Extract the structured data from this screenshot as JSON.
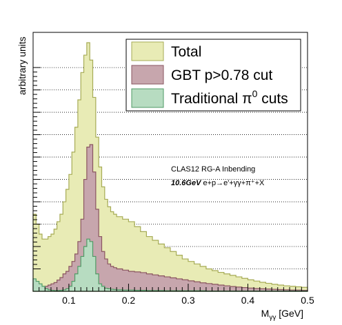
{
  "chart_data": {
    "type": "histogram",
    "xlabel": "M_γγ [GeV]",
    "xlabel_main": "M",
    "xlabel_sub": "γγ",
    "xlabel_unit": " [GeV]",
    "ylabel": "arbitrary units",
    "xlim": [
      0.04,
      0.5
    ],
    "ylim": [
      0,
      1.0
    ],
    "y_tick_labels_shown": false,
    "grid": "horizontal dotted",
    "legend_position": "top-right",
    "x_ticks": [
      {
        "value": 0.1,
        "label": "0.1"
      },
      {
        "value": 0.2,
        "label": "0.2"
      },
      {
        "value": 0.3,
        "label": "0.3"
      },
      {
        "value": 0.4,
        "label": "0.4"
      },
      {
        "value": 0.5,
        "label": "0.5"
      }
    ],
    "y_gridlines": [
      0.1,
      0.2,
      0.3,
      0.4,
      0.5,
      0.6,
      0.7,
      0.8,
      0.9,
      1.0
    ],
    "annotation": {
      "line1": "CLAS12 RG-A Inbending",
      "line2_bold": "10.6GeV",
      "line2_rest": " e+p→e'+γγ+π⁺+X"
    },
    "series": [
      {
        "name": "Total",
        "fill": "#e8ebb5",
        "stroke": "#a6ab55",
        "legend_label": "Total",
        "x": [
          0.04,
          0.045,
          0.05,
          0.055,
          0.06,
          0.065,
          0.07,
          0.075,
          0.08,
          0.085,
          0.09,
          0.095,
          0.1,
          0.105,
          0.11,
          0.115,
          0.12,
          0.125,
          0.13,
          0.135,
          0.14,
          0.145,
          0.15,
          0.155,
          0.16,
          0.165,
          0.17,
          0.175,
          0.18,
          0.19,
          0.2,
          0.21,
          0.22,
          0.23,
          0.24,
          0.25,
          0.26,
          0.27,
          0.28,
          0.29,
          0.3,
          0.31,
          0.32,
          0.33,
          0.34,
          0.35,
          0.36,
          0.37,
          0.38,
          0.39,
          0.4,
          0.41,
          0.42,
          0.43,
          0.44,
          0.45,
          0.46,
          0.47,
          0.48,
          0.49,
          0.5
        ],
        "y": [
          0.31,
          0.27,
          0.23,
          0.21,
          0.21,
          0.22,
          0.23,
          0.25,
          0.28,
          0.31,
          0.36,
          0.41,
          0.47,
          0.56,
          0.66,
          0.77,
          0.88,
          0.95,
          1.0,
          0.93,
          0.78,
          0.62,
          0.5,
          0.42,
          0.37,
          0.34,
          0.32,
          0.31,
          0.3,
          0.29,
          0.28,
          0.26,
          0.24,
          0.22,
          0.205,
          0.19,
          0.175,
          0.16,
          0.145,
          0.13,
          0.12,
          0.11,
          0.1,
          0.09,
          0.083,
          0.076,
          0.07,
          0.064,
          0.058,
          0.052,
          0.046,
          0.041,
          0.036,
          0.032,
          0.028,
          0.025,
          0.022,
          0.02,
          0.018,
          0.016,
          0.015
        ]
      },
      {
        "name": "GBT p>0.78 cut",
        "fill": "#c7a6ad",
        "stroke": "#8a5560",
        "legend_label": "GBT p>0.78 cut",
        "x": [
          0.04,
          0.045,
          0.05,
          0.055,
          0.06,
          0.065,
          0.07,
          0.075,
          0.08,
          0.085,
          0.09,
          0.095,
          0.1,
          0.105,
          0.11,
          0.115,
          0.12,
          0.125,
          0.13,
          0.135,
          0.14,
          0.145,
          0.15,
          0.155,
          0.16,
          0.165,
          0.17,
          0.175,
          0.18,
          0.19,
          0.2,
          0.21,
          0.22,
          0.23,
          0.24,
          0.25,
          0.26,
          0.27,
          0.28,
          0.29,
          0.3,
          0.31,
          0.32,
          0.33,
          0.34,
          0.35,
          0.36,
          0.37,
          0.38,
          0.39,
          0.4,
          0.41,
          0.42,
          0.43,
          0.44,
          0.45,
          0.46,
          0.47,
          0.48,
          0.49,
          0.5
        ],
        "y": [
          0.03,
          0.022,
          0.018,
          0.018,
          0.02,
          0.025,
          0.03,
          0.035,
          0.045,
          0.055,
          0.07,
          0.08,
          0.1,
          0.12,
          0.15,
          0.2,
          0.29,
          0.45,
          0.58,
          0.59,
          0.48,
          0.33,
          0.22,
          0.16,
          0.13,
          0.11,
          0.1,
          0.095,
          0.09,
          0.085,
          0.08,
          0.078,
          0.075,
          0.07,
          0.066,
          0.062,
          0.058,
          0.054,
          0.05,
          0.046,
          0.042,
          0.038,
          0.034,
          0.031,
          0.028,
          0.025,
          0.022,
          0.019,
          0.017,
          0.015,
          0.013,
          0.011,
          0.01,
          0.009,
          0.008,
          0.007,
          0.006,
          0.005,
          0.005,
          0.004,
          0.004
        ]
      },
      {
        "name": "Traditional π0 cuts",
        "fill": "#b7dcc1",
        "stroke": "#4f9a65",
        "legend_label_main": "Traditional π",
        "legend_label_sup": "0",
        "legend_label_tail": " cuts",
        "x": [
          0.04,
          0.045,
          0.05,
          0.055,
          0.06,
          0.065,
          0.07,
          0.075,
          0.08,
          0.085,
          0.09,
          0.095,
          0.1,
          0.105,
          0.11,
          0.115,
          0.12,
          0.125,
          0.13,
          0.135,
          0.14,
          0.145,
          0.15,
          0.155,
          0.16,
          0.165,
          0.17,
          0.175,
          0.18,
          0.19,
          0.2,
          0.21,
          0.22,
          0.23,
          0.24,
          0.25,
          0.26,
          0.27,
          0.28,
          0.29,
          0.3,
          0.31,
          0.32,
          0.33,
          0.34,
          0.35,
          0.36,
          0.37,
          0.38,
          0.39,
          0.4,
          0.41,
          0.42,
          0.43,
          0.44,
          0.45,
          0.46,
          0.47,
          0.48,
          0.49,
          0.5
        ],
        "y": [
          0.05,
          0.04,
          0.03,
          0.02,
          0.01,
          0.006,
          0.004,
          0.003,
          0.003,
          0.004,
          0.006,
          0.01,
          0.02,
          0.04,
          0.07,
          0.1,
          0.14,
          0.18,
          0.21,
          0.2,
          0.14,
          0.07,
          0.03,
          0.02,
          0.012,
          0.01,
          0.008,
          0.007,
          0.006,
          0.005,
          0.005,
          0.004,
          0.004,
          0.003,
          0.003,
          0.003,
          0.002,
          0.002,
          0.002,
          0.002,
          0.002,
          0.002,
          0.002,
          0.001,
          0.001,
          0.001,
          0.001,
          0.001,
          0.001,
          0.001,
          0.001,
          0.001,
          0.001,
          0.001,
          0.001,
          0.001,
          0.001,
          0.001,
          0.001,
          0.001,
          0.001
        ]
      }
    ]
  }
}
